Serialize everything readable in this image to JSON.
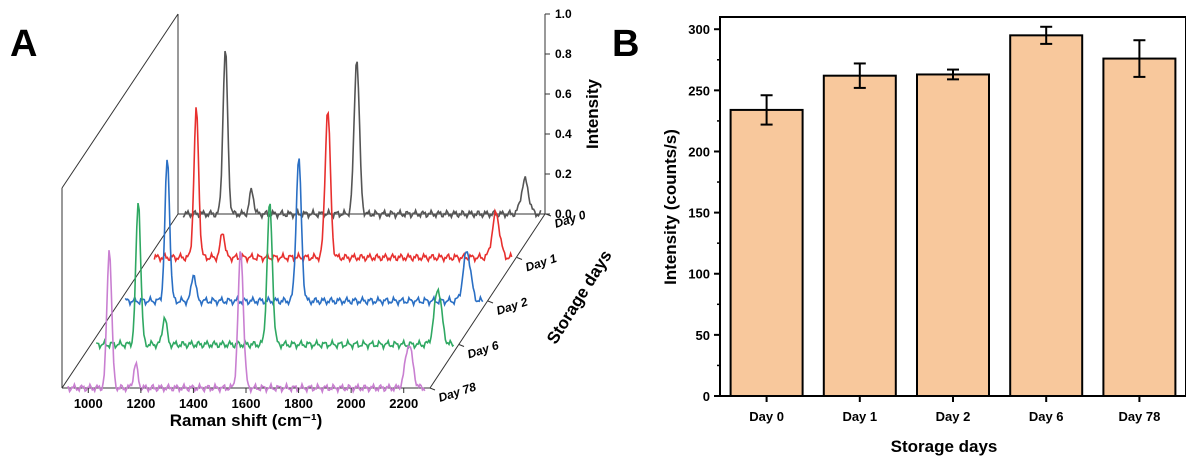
{
  "panels": {
    "a_label": "A",
    "b_label": "B"
  },
  "chart_data": [
    {
      "type": "line",
      "panel": "A",
      "title": "",
      "xlabel": "Raman shift (cm⁻¹)",
      "ylabel": "Intensity",
      "zlabel": "Storage days",
      "xlim": [
        900,
        2300
      ],
      "ylim": [
        0.0,
        1.0
      ],
      "xticks": [
        "1000",
        "1200",
        "1400",
        "1600",
        "1800",
        "2000",
        "2200"
      ],
      "yticks": [
        "0.0",
        "0.2",
        "0.4",
        "0.6",
        "0.8",
        "1.0"
      ],
      "peaks_x": [
        1080,
        1180,
        1580,
        2220
      ],
      "series": [
        {
          "name": "Day 0",
          "color": "#555555",
          "peaks": [
            0.82,
            0.12,
            0.78,
            0.17
          ]
        },
        {
          "name": "Day 1",
          "color": "#e8302e",
          "peaks": [
            0.74,
            0.13,
            0.74,
            0.22
          ]
        },
        {
          "name": "Day 2",
          "color": "#2a6fc4",
          "peaks": [
            0.71,
            0.14,
            0.71,
            0.25
          ]
        },
        {
          "name": "Day 6",
          "color": "#2fa862",
          "peaks": [
            0.72,
            0.14,
            0.7,
            0.28
          ]
        },
        {
          "name": "Day 78",
          "color": "#c97fd1",
          "peaks": [
            0.7,
            0.12,
            0.69,
            0.22
          ]
        }
      ]
    },
    {
      "type": "bar",
      "panel": "B",
      "title": "",
      "categories": [
        "Day 0",
        "Day 1",
        "Day 2",
        "Day 6",
        "Day 78"
      ],
      "values": [
        234,
        262,
        263,
        295,
        276
      ],
      "errors": [
        12,
        10,
        4,
        7,
        15
      ],
      "xlabel": "Storage days",
      "ylabel": "Intensity (counts/s)",
      "ylim": [
        0,
        310
      ],
      "yticks": [
        "0",
        "50",
        "100",
        "150",
        "200",
        "250",
        "300"
      ],
      "bar_color": "#f8c89c"
    }
  ]
}
